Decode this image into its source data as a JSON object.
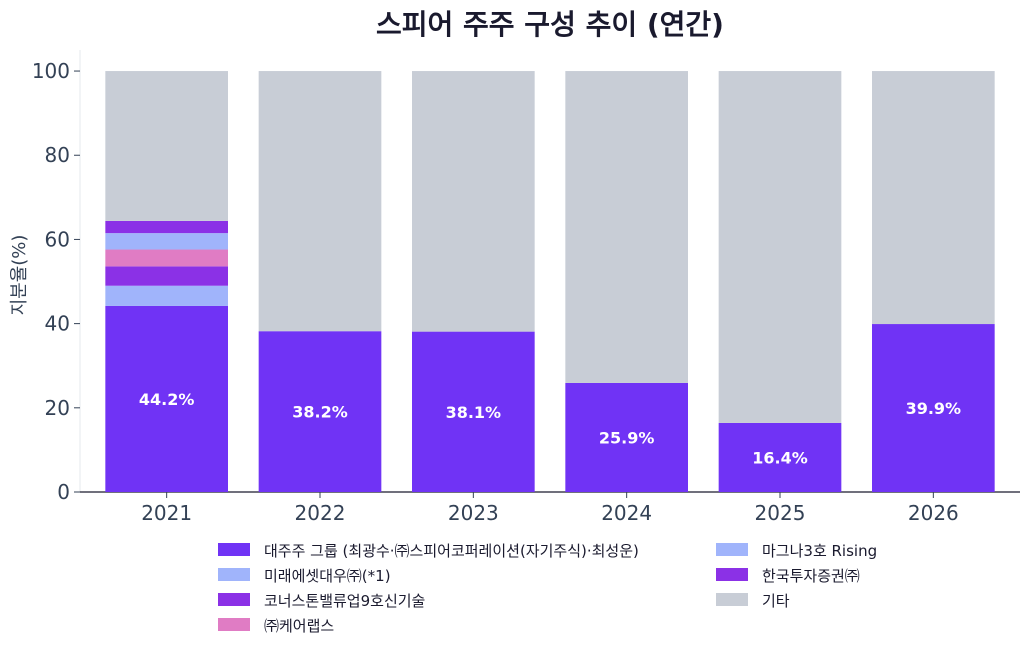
{
  "chart_data": {
    "type": "bar",
    "stacked": true,
    "title": "스피어 주주 구성 추이 (연간)",
    "xlabel": "",
    "ylabel": "지분율(%)",
    "ylim": [
      0,
      105
    ],
    "yticks": [
      0,
      20,
      40,
      60,
      80,
      100
    ],
    "categories": [
      "2021",
      "2022",
      "2023",
      "2024",
      "2025",
      "2026"
    ],
    "series": [
      {
        "name": "대주주 그룹 (최광수·㈜스피어코퍼레이션(자기주식)·최성운)",
        "color": "#7033f5",
        "values": [
          44.2,
          38.2,
          38.1,
          25.9,
          16.4,
          39.9
        ]
      },
      {
        "name": "미래에셋대우㈜(*1)",
        "color": "#a0b4fb",
        "values": [
          4.8,
          0,
          0,
          0,
          0,
          0
        ]
      },
      {
        "name": "코너스톤밸류업9호신기술",
        "color": "#8b31e6",
        "values": [
          4.6,
          0,
          0,
          0,
          0,
          0
        ]
      },
      {
        "name": "㈜케어랩스",
        "color": "#e07cc4",
        "values": [
          4.0,
          0,
          0,
          0,
          0,
          0
        ]
      },
      {
        "name": "마그나3호 Rising",
        "color": "#a0b4fb",
        "values": [
          3.9,
          0,
          0,
          0,
          0,
          0
        ]
      },
      {
        "name": "한국투자증권㈜",
        "color": "#8b31e6",
        "values": [
          2.9,
          0,
          0,
          0,
          0,
          0
        ]
      },
      {
        "name": "기타",
        "color": "#c8cdd6",
        "values": [
          35.6,
          61.8,
          61.9,
          74.1,
          83.6,
          60.1
        ]
      }
    ],
    "data_labels": [
      "44.2%",
      "38.2%",
      "38.1%",
      "25.9%",
      "16.4%",
      "39.9%"
    ],
    "legend": {
      "placement": "bottom",
      "columns": 2
    }
  }
}
